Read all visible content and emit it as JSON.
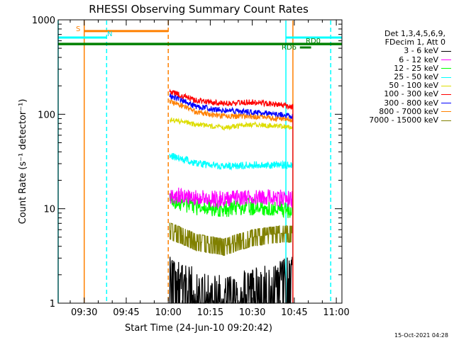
{
  "chart_data": {
    "type": "line",
    "title": "RHESSI Observing Summary Count Rates",
    "xlabel": "Start Time (24-Jun-10 09:20:42)",
    "ylabel": "Count Rate (s⁻¹ detector⁻¹)",
    "yscale": "log",
    "xlim": [
      "09:20:42",
      "11:02"
    ],
    "ylim": [
      1,
      1000
    ],
    "x_ticks": [
      "09:30",
      "09:45",
      "10:00",
      "10:15",
      "10:30",
      "10:45",
      "11:00"
    ],
    "y_ticks": [
      "1",
      "10",
      "100",
      "1000"
    ],
    "data_start": "10:00:30",
    "data_end": "10:44:30",
    "series": [
      {
        "name": "3 - 6 keV",
        "color": "#000000",
        "times": [
          "10:00",
          "10:10",
          "10:20",
          "10:30",
          "10:40",
          "10:44"
        ],
        "values": [
          2.5,
          1.8,
          1.5,
          1.8,
          2.2,
          2.5
        ]
      },
      {
        "name": "6 - 12 keV",
        "color": "#ff00ff",
        "times": [
          "10:00",
          "10:10",
          "10:20",
          "10:30",
          "10:40",
          "10:44"
        ],
        "values": [
          14,
          13,
          12.5,
          13.5,
          13,
          12.5
        ]
      },
      {
        "name": "12 - 25 keV",
        "color": "#00ff00",
        "times": [
          "10:00",
          "10:10",
          "10:20",
          "10:30",
          "10:40",
          "10:44"
        ],
        "values": [
          12,
          10.5,
          10,
          10.5,
          10,
          9.5
        ]
      },
      {
        "name": "25 - 50 keV",
        "color": "#00ffff",
        "times": [
          "10:00",
          "10:10",
          "10:20",
          "10:30",
          "10:40",
          "10:44"
        ],
        "values": [
          37,
          30,
          28,
          29,
          29,
          29
        ]
      },
      {
        "name": "50 - 100 keV",
        "color": "#dddd00",
        "times": [
          "10:00",
          "10:10",
          "10:20",
          "10:30",
          "10:40",
          "10:44"
        ],
        "values": [
          88,
          78,
          72,
          78,
          75,
          72
        ]
      },
      {
        "name": "100 - 300 keV",
        "color": "#ff0000",
        "times": [
          "10:00",
          "10:10",
          "10:20",
          "10:30",
          "10:40",
          "10:44"
        ],
        "values": [
          175,
          140,
          130,
          135,
          125,
          120
        ]
      },
      {
        "name": "300 - 800 keV",
        "color": "#0000ff",
        "times": [
          "10:00",
          "10:10",
          "10:20",
          "10:30",
          "10:40",
          "10:44"
        ],
        "values": [
          160,
          120,
          110,
          105,
          100,
          95
        ]
      },
      {
        "name": "800 - 7000 keV",
        "color": "#ff8000",
        "times": [
          "10:00",
          "10:10",
          "10:20",
          "10:30",
          "10:40",
          "10:44"
        ],
        "values": [
          140,
          105,
          95,
          95,
          90,
          88
        ]
      },
      {
        "name": "7000 - 15000 keV",
        "color": "#808000",
        "times": [
          "10:00",
          "10:10",
          "10:20",
          "10:30",
          "10:40",
          "10:44"
        ],
        "values": [
          6,
          4.5,
          4,
          5,
          5.5,
          5.5
        ]
      }
    ],
    "annotations": {
      "S_label": "S",
      "N_label": "N",
      "RD6_label": "RD6",
      "RD0_label": "RD0"
    },
    "vertical_markers": [
      {
        "time": "09:20:42",
        "color": "#00ffff",
        "style": "solid"
      },
      {
        "time": "09:30",
        "color": "#ff8000",
        "style": "solid"
      },
      {
        "time": "09:38",
        "color": "#00ffff",
        "style": "dashed"
      },
      {
        "time": "10:00",
        "color": "#ff8000",
        "style": "dashed"
      },
      {
        "time": "10:42",
        "color": "#00ffff",
        "style": "solid"
      },
      {
        "time": "10:44:30",
        "color": "#ff8000",
        "style": "solid"
      },
      {
        "time": "10:58",
        "color": "#00ffff",
        "style": "dashed"
      }
    ]
  },
  "legend": {
    "header_line1": "Det 1,3,4,5,6,9,",
    "header_line2": "FDecim 1, Att 0"
  },
  "timestamp": "15-Oct-2021 04:28"
}
